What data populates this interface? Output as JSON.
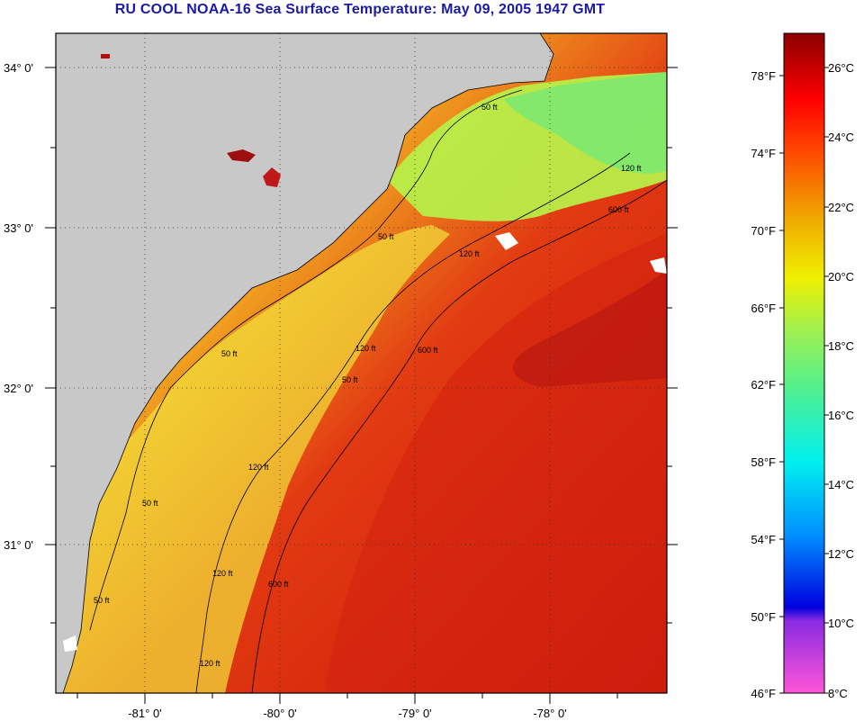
{
  "title": "RU COOL  NOAA-16  Sea Surface Temperature:  May 09, 2005 1947 GMT",
  "lat_ticks": [
    "34° 0'",
    "33° 0'",
    "32° 0'",
    "31° 0'"
  ],
  "lon_ticks": [
    "-81° 0'",
    "-80° 0'",
    "-79° 0'",
    "-78° 0'"
  ],
  "contour_labels": {
    "c50_a": "50 ft",
    "c50_b": "50 ft",
    "c50_c": "50 ft",
    "c50_d": "50 ft",
    "c50_e": "50 ft",
    "c50_f": "50 ft",
    "c120_a": "120 ft",
    "c120_b": "120 ft",
    "c120_c": "120 ft",
    "c120_d": "120 ft",
    "c120_e": "120 ft",
    "c120_f": "120 ft",
    "c600_a": "600 ft",
    "c600_b": "600 ft",
    "c600_c": "600 ft"
  },
  "colorbar": {
    "fahrenheit": [
      "78°F",
      "74°F",
      "70°F",
      "66°F",
      "62°F",
      "58°F",
      "54°F",
      "50°F",
      "46°F"
    ],
    "celsius": [
      "26°C",
      "24°C",
      "22°C",
      "20°C",
      "18°C",
      "16°C",
      "14°C",
      "12°C",
      "10°C",
      "8°C"
    ]
  },
  "colors": {
    "title": "#1a1aa6",
    "land": "#c8c8c8",
    "frame": "#000000"
  }
}
